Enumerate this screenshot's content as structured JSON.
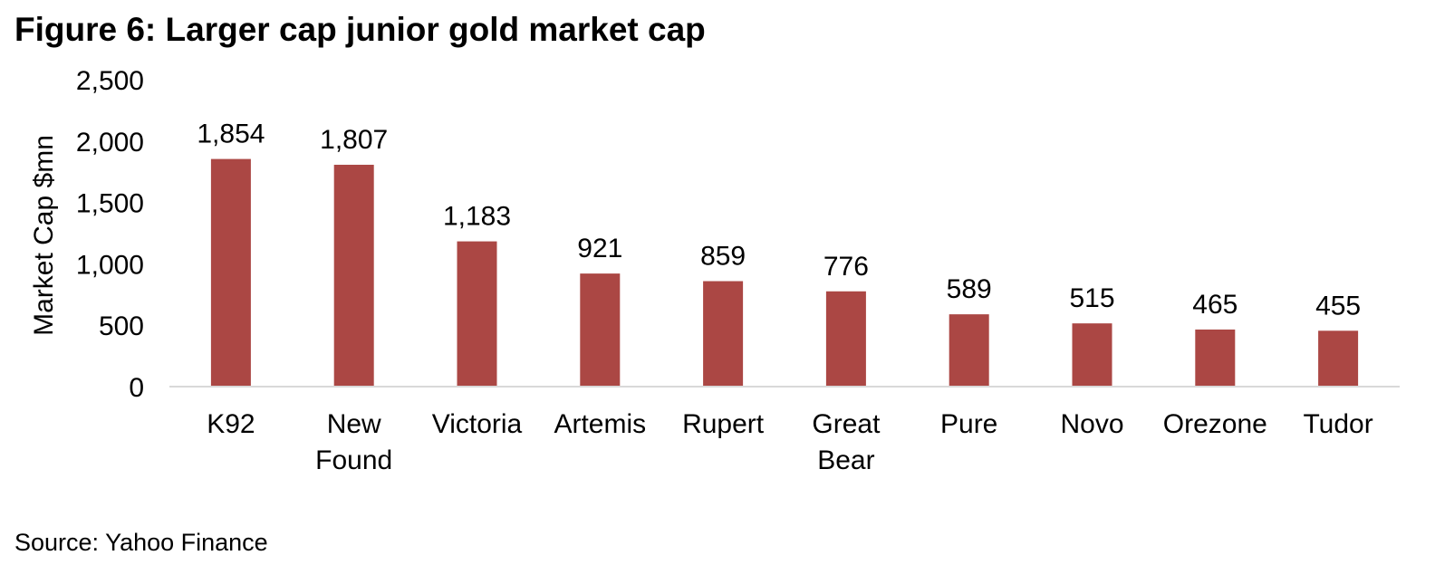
{
  "title": "Figure 6: Larger cap junior gold market cap",
  "source": "Source: Yahoo Finance",
  "colors": {
    "bar": "#ab4744",
    "axis_line": "#d9d9d9"
  },
  "chart_data": {
    "type": "bar",
    "title": "",
    "ylabel": "Market Cap $mn",
    "xlabel": "",
    "ylim": [
      0,
      2500
    ],
    "yticks": [
      0,
      500,
      1000,
      1500,
      2000,
      2500
    ],
    "ytick_labels": [
      "0",
      "500",
      "1,000",
      "1,500",
      "2,000",
      "2,500"
    ],
    "grid": false,
    "legend": "none",
    "categories": [
      [
        "K92"
      ],
      [
        "New",
        "Found"
      ],
      [
        "Victoria"
      ],
      [
        "Artemis"
      ],
      [
        "Rupert"
      ],
      [
        "Great",
        "Bear"
      ],
      [
        "Pure"
      ],
      [
        "Novo"
      ],
      [
        "Orezone"
      ],
      [
        "Tudor"
      ]
    ],
    "values": [
      1854,
      1807,
      1183,
      921,
      859,
      776,
      589,
      515,
      465,
      455
    ],
    "value_labels": [
      "1,854",
      "1,807",
      "1,183",
      "921",
      "859",
      "776",
      "589",
      "515",
      "465",
      "455"
    ]
  }
}
